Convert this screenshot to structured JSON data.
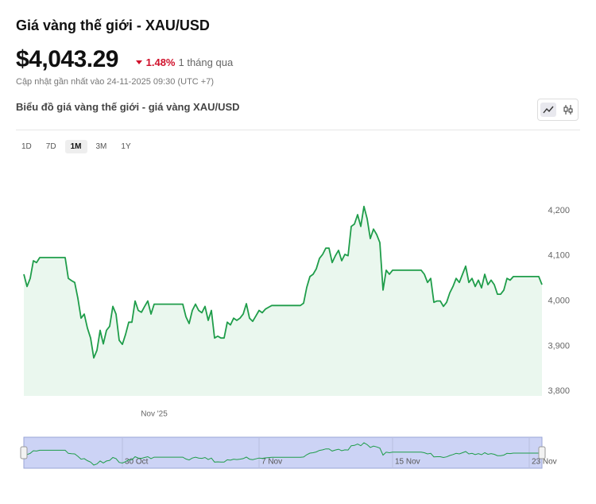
{
  "header": {
    "title": "Giá vàng thế giới - XAU/USD",
    "price": "$4,043.29",
    "change": "1.48%",
    "period": "1 tháng qua",
    "updated": "Cập nhật gần nhất vào 24-11-2025 09:30 (UTC +7)"
  },
  "chart_section": {
    "title": "Biểu đồ giá vàng thế giới - giá vàng XAU/USD",
    "ranges": [
      "1D",
      "7D",
      "1M",
      "3M",
      "1Y"
    ],
    "active_range": "1M"
  },
  "chart_data": {
    "type": "line",
    "color": "#1f9d4a",
    "fill_color": "#eaf7ee",
    "categories": [
      null,
      null,
      null,
      null,
      null,
      null,
      null,
      null,
      null,
      null,
      null,
      null,
      null,
      null,
      null,
      null,
      null,
      null,
      null,
      null,
      null,
      null,
      null,
      null,
      null,
      null,
      null,
      null,
      null,
      null,
      null,
      null,
      null,
      null,
      null,
      null,
      null,
      null,
      null,
      null,
      null,
      "Nov '25",
      null,
      null,
      null,
      null,
      null,
      null,
      null,
      null,
      null,
      null,
      null,
      null,
      null,
      null,
      null,
      null,
      null,
      null,
      null,
      null,
      null,
      null,
      null,
      null,
      null,
      null,
      null,
      null,
      null,
      null,
      null,
      null,
      null,
      null,
      null,
      null,
      null,
      null,
      null,
      null,
      null,
      null,
      null,
      null,
      null,
      null,
      null,
      null,
      null,
      null,
      null,
      null,
      null,
      null,
      null,
      null,
      null,
      null,
      null,
      null,
      null,
      null,
      null,
      null,
      null,
      null,
      null,
      null,
      null,
      null,
      null,
      null,
      null,
      null,
      null,
      null,
      null,
      null,
      null,
      null,
      null,
      null,
      null,
      null,
      null,
      null,
      null,
      null,
      null,
      null,
      null,
      null,
      null,
      null,
      null,
      null,
      null,
      null,
      null,
      null,
      null,
      null,
      null,
      null,
      null,
      null,
      null,
      null,
      null,
      null,
      null,
      null,
      null,
      null,
      null,
      null,
      null,
      null,
      null,
      null,
      null,
      null
    ],
    "navigator_categories": [
      null,
      null,
      null,
      null,
      null,
      null,
      null,
      null,
      null,
      null,
      null,
      null,
      null,
      null,
      null,
      null,
      null,
      null,
      null,
      null,
      null,
      null,
      null,
      null,
      null,
      null,
      null,
      null,
      null,
      null,
      null,
      "30 Oct",
      null,
      null,
      null,
      null,
      null,
      null,
      null,
      null,
      null,
      null,
      null,
      null,
      null,
      null,
      null,
      null,
      null,
      null,
      null,
      null,
      null,
      null,
      null,
      null,
      null,
      null,
      null,
      null,
      null,
      null,
      null,
      null,
      null,
      null,
      null,
      null,
      null,
      null,
      null,
      null,
      null,
      null,
      "7 Nov",
      null,
      null,
      null,
      null,
      null,
      null,
      null,
      null,
      null,
      null,
      null,
      null,
      null,
      null,
      null,
      null,
      null,
      null,
      null,
      null,
      null,
      null,
      null,
      null,
      null,
      null,
      null,
      null,
      null,
      null,
      null,
      null,
      null,
      null,
      null,
      null,
      null,
      null,
      null,
      null,
      null,
      "15 Nov",
      null,
      null,
      null,
      null,
      null,
      null,
      null,
      null,
      null,
      null,
      null,
      null,
      null,
      null,
      null,
      null,
      null,
      null,
      null,
      null,
      null,
      null,
      null,
      null,
      null,
      null,
      null,
      null,
      null,
      null,
      null,
      null,
      null,
      null,
      null,
      null,
      null,
      null,
      null,
      null,
      null,
      null,
      "23 Nov",
      null,
      null,
      null,
      null
    ],
    "values": [
      4059,
      4032,
      4050,
      4089,
      4085,
      4096,
      4096,
      4096,
      4096,
      4096,
      4096,
      4096,
      4096,
      4096,
      4050,
      4045,
      4041,
      4006,
      3962,
      3971,
      3940,
      3918,
      3874,
      3891,
      3935,
      3905,
      3935,
      3944,
      3988,
      3971,
      3913,
      3904,
      3926,
      3953,
      3953,
      4000,
      3979,
      3975,
      3988,
      4000,
      3971,
      3993,
      3993,
      3993,
      3993,
      3993,
      3993,
      3993,
      3993,
      3993,
      3993,
      3965,
      3950,
      3979,
      3993,
      3979,
      3974,
      3988,
      3957,
      3979,
      3918,
      3922,
      3918,
      3918,
      3953,
      3947,
      3962,
      3957,
      3962,
      3971,
      3994,
      3962,
      3955,
      3967,
      3979,
      3974,
      3982,
      3986,
      3990,
      3990,
      3990,
      3990,
      3990,
      3990,
      3990,
      3990,
      3990,
      3990,
      3995,
      4030,
      4054,
      4059,
      4071,
      4094,
      4103,
      4117,
      4117,
      4085,
      4100,
      4112,
      4089,
      4103,
      4100,
      4165,
      4170,
      4191,
      4165,
      4209,
      4182,
      4138,
      4159,
      4147,
      4129,
      4024,
      4068,
      4059,
      4068,
      4068,
      4068,
      4068,
      4068,
      4068,
      4068,
      4068,
      4068,
      4068,
      4059,
      4041,
      4050,
      3997,
      4000,
      4000,
      3988,
      3997,
      4018,
      4032,
      4050,
      4041,
      4059,
      4077,
      4041,
      4050,
      4032,
      4046,
      4029,
      4059,
      4036,
      4046,
      4036,
      4015,
      4015,
      4024,
      4050,
      4046,
      4054,
      4054,
      4054,
      4054,
      4054,
      4054,
      4054,
      4054,
      4054,
      4036
    ],
    "ylim": [
      3790,
      4300
    ],
    "yticks": [
      {
        "value": 3800,
        "label": "3,800"
      },
      {
        "value": 3900,
        "label": "3,900"
      },
      {
        "value": 4000,
        "label": "4,000"
      },
      {
        "value": 4100,
        "label": "4,100"
      },
      {
        "value": 4200,
        "label": "4,200"
      }
    ]
  }
}
